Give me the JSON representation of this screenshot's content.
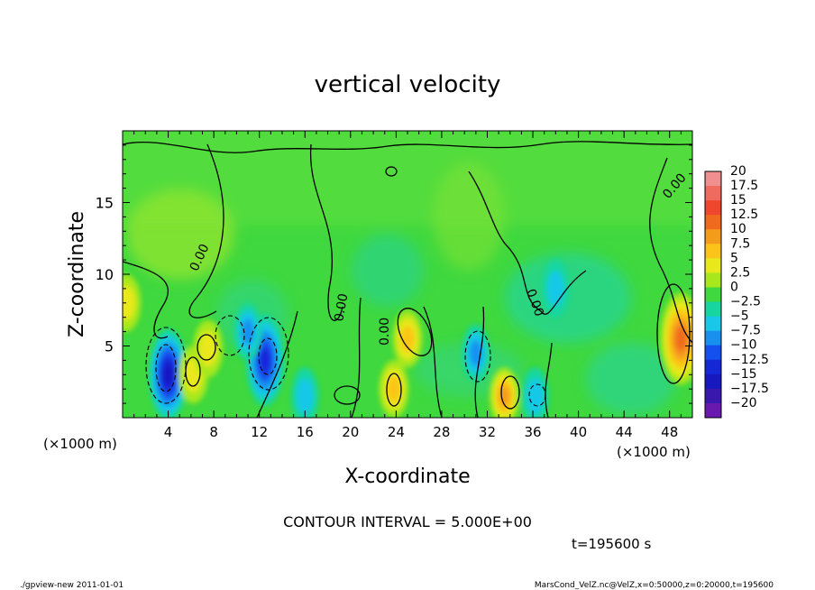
{
  "chart_data": {
    "type": "heatmap",
    "title": "vertical velocity",
    "xlabel": "X-coordinate",
    "ylabel": "Z-coordinate",
    "x_unit_left": "(×1000 m)",
    "x_unit_right": "(×1000 m)",
    "xlim": [
      0,
      50
    ],
    "ylim": [
      0,
      20
    ],
    "x_ticks": [
      4,
      8,
      12,
      16,
      20,
      24,
      28,
      32,
      36,
      40,
      44,
      48
    ],
    "x_tick_labels": [
      "4",
      "8",
      "12",
      "16",
      "20",
      "24",
      "28",
      "32",
      "36",
      "40",
      "44",
      "48"
    ],
    "y_ticks": [
      5,
      10,
      15
    ],
    "y_tick_labels": [
      "5",
      "10",
      "15"
    ],
    "grid": false,
    "colorbar": {
      "labels": [
        "20",
        "17.5",
        "15",
        "12.5",
        "10",
        "7.5",
        "5",
        "2.5",
        "0",
        "−2.5",
        "−5",
        "−7.5",
        "−10",
        "−12.5",
        "−15",
        "−17.5",
        "−20"
      ],
      "colors": [
        "#f08f8f",
        "#f06a5e",
        "#f0462e",
        "#f06a1e",
        "#f59b1a",
        "#fcc418",
        "#e8e81a",
        "#a8e81a",
        "#3fd83f",
        "#16d6a0",
        "#18c8e8",
        "#1890f0",
        "#1450f0",
        "#1428d8",
        "#1818c0",
        "#3a18b0",
        "#6a18b0"
      ]
    },
    "contour_label": "0.00",
    "contour_interval_text": "CONTOUR INTERVAL = 5.000E+00",
    "time_text": "t=195600 s",
    "features": [
      {
        "x": 4,
        "z": 3,
        "value": -15
      },
      {
        "x": 12.5,
        "z": 4,
        "value": -12.5
      },
      {
        "x": 11,
        "z": 6,
        "value": -7.5
      },
      {
        "x": 31,
        "z": 4.5,
        "value": -7.5
      },
      {
        "x": 36.2,
        "z": 1.5,
        "value": -5
      },
      {
        "x": 16,
        "z": 1.5,
        "value": -5
      },
      {
        "x": 38,
        "z": 9,
        "value": -5
      },
      {
        "x": 49,
        "z": 5.5,
        "value": 12.5
      },
      {
        "x": 33.5,
        "z": 1.5,
        "value": 10
      },
      {
        "x": 25,
        "z": 5.5,
        "value": 7.5
      },
      {
        "x": 23.8,
        "z": 2,
        "value": 7.5
      },
      {
        "x": 6.2,
        "z": 3,
        "value": 5
      },
      {
        "x": 7.5,
        "z": 4.8,
        "value": 5
      },
      {
        "x": 0.3,
        "z": 8,
        "value": 5
      }
    ]
  },
  "footer": {
    "left": "./gpview-new   2011-01-01",
    "right": "MarsCond_VelZ.nc@VelZ,x=0:50000,z=0:20000,t=195600"
  }
}
